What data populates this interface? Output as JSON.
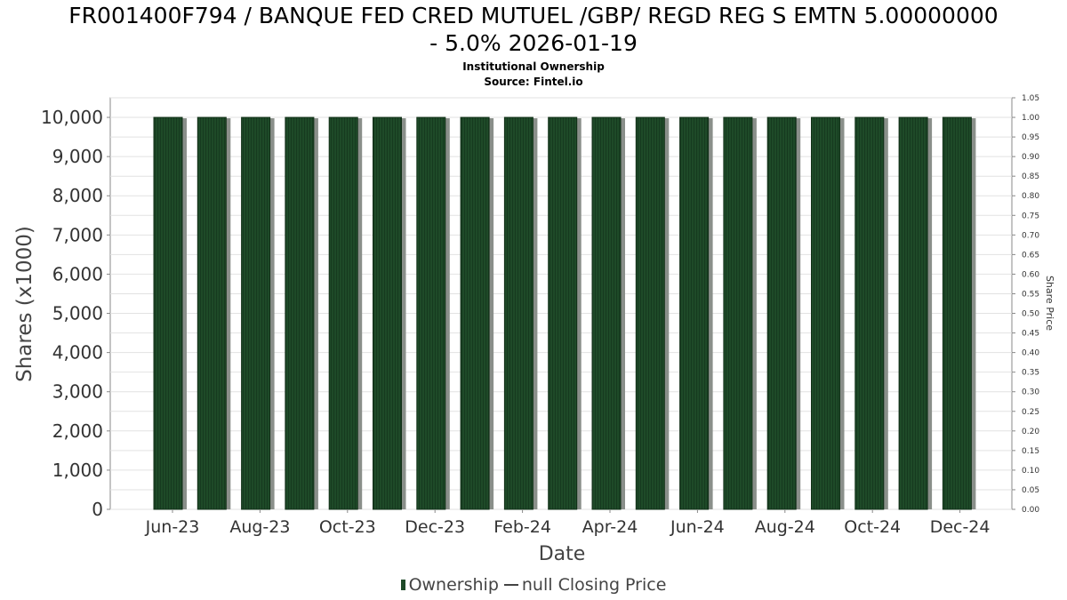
{
  "title_lines": [
    "FR001400F794 / BANQUE FED CRED MUTUEL /GBP/ REGD REG S EMTN 5.00000000",
    "- 5.0% 2026-01-19"
  ],
  "subtitle": "Institutional Ownership",
  "source": "Source: Fintel.io",
  "legend": {
    "ownership_label": "Ownership",
    "price_label": "null Closing Price"
  },
  "colors": {
    "bar_fill": "#1e4a28",
    "bar_shadow": "#8a8f8a",
    "grid": "#e2e2e2",
    "axis": "#888888"
  },
  "chart_data": {
    "type": "bar",
    "xlabel": "Date",
    "ylabel": "Shares (x1000)",
    "y2label": "Share Price",
    "ylim": [
      0,
      10500
    ],
    "y2lim": [
      0,
      1.05
    ],
    "yticks": [
      0,
      1000,
      2000,
      3000,
      4000,
      5000,
      6000,
      7000,
      8000,
      9000,
      10000
    ],
    "y2ticks": [
      0.0,
      0.05,
      0.1,
      0.15,
      0.2,
      0.25,
      0.3,
      0.35,
      0.4,
      0.45,
      0.5,
      0.55,
      0.6,
      0.65,
      0.7,
      0.75,
      0.8,
      0.85,
      0.9,
      0.95,
      1.0,
      1.05
    ],
    "x_tick_labels": [
      "Jun-23",
      "Aug-23",
      "Oct-23",
      "Dec-23",
      "Feb-24",
      "Apr-24",
      "Jun-24",
      "Aug-24",
      "Oct-24",
      "Dec-24"
    ],
    "grid": true,
    "legend_position": "bottom",
    "series": [
      {
        "name": "Ownership",
        "values": [
          10000,
          10000,
          10000,
          10000,
          10000,
          10000,
          10000,
          10000,
          10000,
          10000,
          10000,
          10000,
          10000,
          10000,
          10000,
          10000,
          10000,
          10000,
          10000
        ]
      }
    ]
  }
}
